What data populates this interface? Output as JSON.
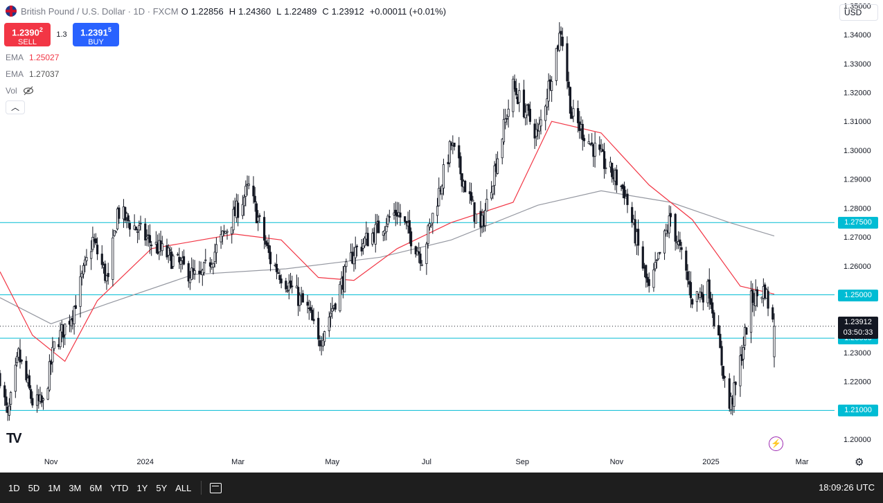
{
  "header": {
    "symbol": "British Pound / U.S. Dollar · 1D · FXCM",
    "open_key": "O",
    "open": "1.22856",
    "high_key": "H",
    "high": "1.24360",
    "low_key": "L",
    "low": "1.22489",
    "close_key": "C",
    "close": "1.23912",
    "change": "+0.00011 (+0.01%)"
  },
  "trade": {
    "sell_price": "1.2390",
    "sell_sup": "2",
    "sell_label": "SELL",
    "spread": "1.3",
    "buy_price": "1.2391",
    "buy_sup": "5",
    "buy_label": "BUY"
  },
  "indicators": [
    {
      "name": "EMA",
      "value": "1.25027",
      "color": "#f23645"
    },
    {
      "name": "EMA",
      "value": "1.27037",
      "color": "#787b86"
    }
  ],
  "vol_label": "Vol",
  "currency": "USD",
  "current_price": {
    "value": "1.23912",
    "countdown": "03:50:33"
  },
  "levels": [
    {
      "price": 1.275,
      "label": "1.27500"
    },
    {
      "price": 1.25,
      "label": "1.25000"
    },
    {
      "price": 1.235,
      "label": "1.23500"
    },
    {
      "price": 1.21,
      "label": "1.21000"
    }
  ],
  "colors": {
    "up": "#131722",
    "down": "#131722",
    "level": "#00bcd4",
    "ema50": "#f23645",
    "ema200": "#9598a1",
    "tag": "#00bcd4"
  },
  "bottom": {
    "ranges": [
      "1D",
      "5D",
      "1M",
      "3M",
      "6M",
      "YTD",
      "1Y",
      "5Y",
      "ALL"
    ],
    "clock": "18:09:26 UTC"
  },
  "chart_data": {
    "type": "candlestick",
    "title": "British Pound / U.S. Dollar · 1D · FXCM",
    "ylim": [
      1.195,
      1.352
    ],
    "y_ticks": [
      1.2,
      1.21,
      1.22,
      1.23,
      1.24,
      1.25,
      1.26,
      1.27,
      1.28,
      1.29,
      1.3,
      1.31,
      1.32,
      1.33,
      1.34,
      1.35
    ],
    "y_tick_labels": [
      "1.20000",
      "1.21000",
      "1.22000",
      "1.23000",
      "1.24000",
      "1.25000",
      "1.26000",
      "1.27000",
      "1.28000",
      "1.29000",
      "1.30000",
      "1.31000",
      "1.32000",
      "1.33000",
      "1.34000",
      "1.35000"
    ],
    "x_ticks": [
      {
        "date": "2023-11-01",
        "label": "Nov"
      },
      {
        "date": "2024-01-01",
        "label": "2024"
      },
      {
        "date": "2024-03-01",
        "label": "Mar"
      },
      {
        "date": "2024-05-01",
        "label": "May"
      },
      {
        "date": "2024-07-01",
        "label": "Jul"
      },
      {
        "date": "2024-09-01",
        "label": "Sep"
      },
      {
        "date": "2024-11-01",
        "label": "Nov"
      },
      {
        "date": "2025-01-01",
        "label": "2025"
      },
      {
        "date": "2025-03-01",
        "label": "Mar"
      }
    ],
    "x_range": [
      "2023-09-29",
      "2025-03-22"
    ],
    "close_path": [
      {
        "date": "2023-09-29",
        "close": 1.222
      },
      {
        "date": "2023-10-04",
        "close": 1.207
      },
      {
        "date": "2023-10-11",
        "close": 1.229
      },
      {
        "date": "2023-10-20",
        "close": 1.213
      },
      {
        "date": "2023-10-27",
        "close": 1.212
      },
      {
        "date": "2023-11-03",
        "close": 1.232
      },
      {
        "date": "2023-11-15",
        "close": 1.244
      },
      {
        "date": "2023-11-28",
        "close": 1.269
      },
      {
        "date": "2023-12-08",
        "close": 1.254
      },
      {
        "date": "2023-12-14",
        "close": 1.279
      },
      {
        "date": "2024-01-05",
        "close": 1.268
      },
      {
        "date": "2024-02-05",
        "close": 1.255
      },
      {
        "date": "2024-03-08",
        "close": 1.287
      },
      {
        "date": "2024-03-22",
        "close": 1.262
      },
      {
        "date": "2024-04-16",
        "close": 1.244
      },
      {
        "date": "2024-04-22",
        "close": 1.233
      },
      {
        "date": "2024-05-15",
        "close": 1.265
      },
      {
        "date": "2024-06-12",
        "close": 1.279
      },
      {
        "date": "2024-06-28",
        "close": 1.263
      },
      {
        "date": "2024-07-17",
        "close": 1.302
      },
      {
        "date": "2024-08-05",
        "close": 1.272
      },
      {
        "date": "2024-08-26",
        "close": 1.322
      },
      {
        "date": "2024-09-11",
        "close": 1.305
      },
      {
        "date": "2024-09-26",
        "close": 1.342
      },
      {
        "date": "2024-10-03",
        "close": 1.312
      },
      {
        "date": "2024-10-22",
        "close": 1.297
      },
      {
        "date": "2024-11-06",
        "close": 1.286
      },
      {
        "date": "2024-11-22",
        "close": 1.251
      },
      {
        "date": "2024-12-06",
        "close": 1.277
      },
      {
        "date": "2024-12-20",
        "close": 1.249
      },
      {
        "date": "2024-12-31",
        "close": 1.252
      },
      {
        "date": "2025-01-13",
        "close": 1.211
      },
      {
        "date": "2025-01-17",
        "close": 1.218
      },
      {
        "date": "2025-01-27",
        "close": 1.248
      },
      {
        "date": "2025-02-05",
        "close": 1.252
      },
      {
        "date": "2025-02-10",
        "close": 1.24
      }
    ],
    "last_bar": {
      "date": "2025-02-11",
      "open": 1.22856,
      "high": 1.2436,
      "low": 1.22489,
      "close": 1.23912
    },
    "ema_50": [
      {
        "date": "2023-09-29",
        "value": 1.258
      },
      {
        "date": "2023-10-20",
        "value": 1.236
      },
      {
        "date": "2023-11-10",
        "value": 1.227
      },
      {
        "date": "2023-12-01",
        "value": 1.248
      },
      {
        "date": "2024-01-05",
        "value": 1.266
      },
      {
        "date": "2024-02-28",
        "value": 1.271
      },
      {
        "date": "2024-03-29",
        "value": 1.269
      },
      {
        "date": "2024-04-22",
        "value": 1.256
      },
      {
        "date": "2024-05-15",
        "value": 1.255
      },
      {
        "date": "2024-06-12",
        "value": 1.266
      },
      {
        "date": "2024-07-17",
        "value": 1.275
      },
      {
        "date": "2024-08-26",
        "value": 1.282
      },
      {
        "date": "2024-09-20",
        "value": 1.31
      },
      {
        "date": "2024-10-22",
        "value": 1.306
      },
      {
        "date": "2024-11-22",
        "value": 1.288
      },
      {
        "date": "2024-12-20",
        "value": 1.276
      },
      {
        "date": "2025-01-20",
        "value": 1.253
      },
      {
        "date": "2025-02-11",
        "value": 1.25027
      }
    ],
    "ema_200": [
      {
        "date": "2023-09-29",
        "value": 1.249
      },
      {
        "date": "2023-11-01",
        "value": 1.24
      },
      {
        "date": "2023-12-08",
        "value": 1.247
      },
      {
        "date": "2024-02-01",
        "value": 1.257
      },
      {
        "date": "2024-04-01",
        "value": 1.259
      },
      {
        "date": "2024-06-01",
        "value": 1.263
      },
      {
        "date": "2024-07-17",
        "value": 1.269
      },
      {
        "date": "2024-09-11",
        "value": 1.281
      },
      {
        "date": "2024-10-22",
        "value": 1.286
      },
      {
        "date": "2024-12-06",
        "value": 1.282
      },
      {
        "date": "2025-01-13",
        "value": 1.275
      },
      {
        "date": "2025-02-11",
        "value": 1.27037
      }
    ]
  }
}
